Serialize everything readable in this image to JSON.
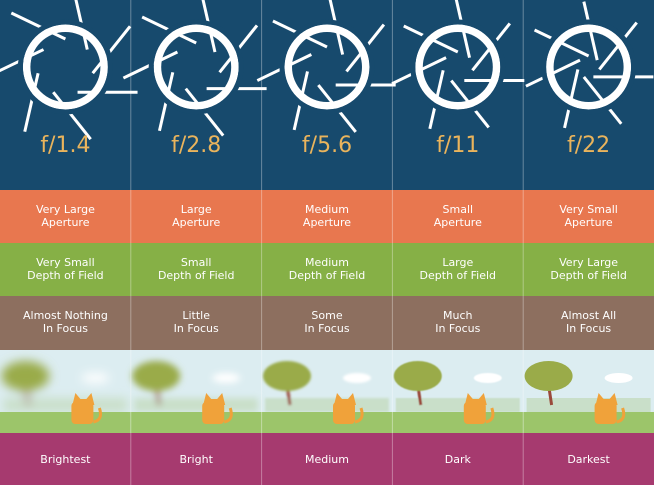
{
  "columns": [
    {
      "fstop": "f/1.4",
      "aperture": [
        "Very Large",
        "Aperture"
      ],
      "depth": [
        "Very Small",
        "Depth of Field"
      ],
      "focus": [
        "Almost Nothing",
        "In Focus"
      ],
      "brightness": "Brightest"
    },
    {
      "fstop": "f/2.8",
      "aperture": [
        "Large",
        "Aperture"
      ],
      "depth": [
        "Small",
        "Depth of Field"
      ],
      "focus": [
        "Little",
        "In Focus"
      ],
      "brightness": "Bright"
    },
    {
      "fstop": "f/5.6",
      "aperture": [
        "Medium",
        "Aperture"
      ],
      "depth": [
        "Medium",
        "Depth of Field"
      ],
      "focus": [
        "Some",
        "In Focus"
      ],
      "brightness": "Medium"
    },
    {
      "fstop": "f/11",
      "aperture": [
        "Small",
        "Aperture"
      ],
      "depth": [
        "Large",
        "Depth of Field"
      ],
      "focus": [
        "Much",
        "In Focus"
      ],
      "brightness": "Dark"
    },
    {
      "fstop": "f/22",
      "aperture": [
        "Very Small",
        "Aperture"
      ],
      "depth": [
        "Very Large",
        "Depth of Field"
      ],
      "focus": [
        "Almost All",
        "In Focus"
      ],
      "brightness": "Darkest"
    }
  ]
}
